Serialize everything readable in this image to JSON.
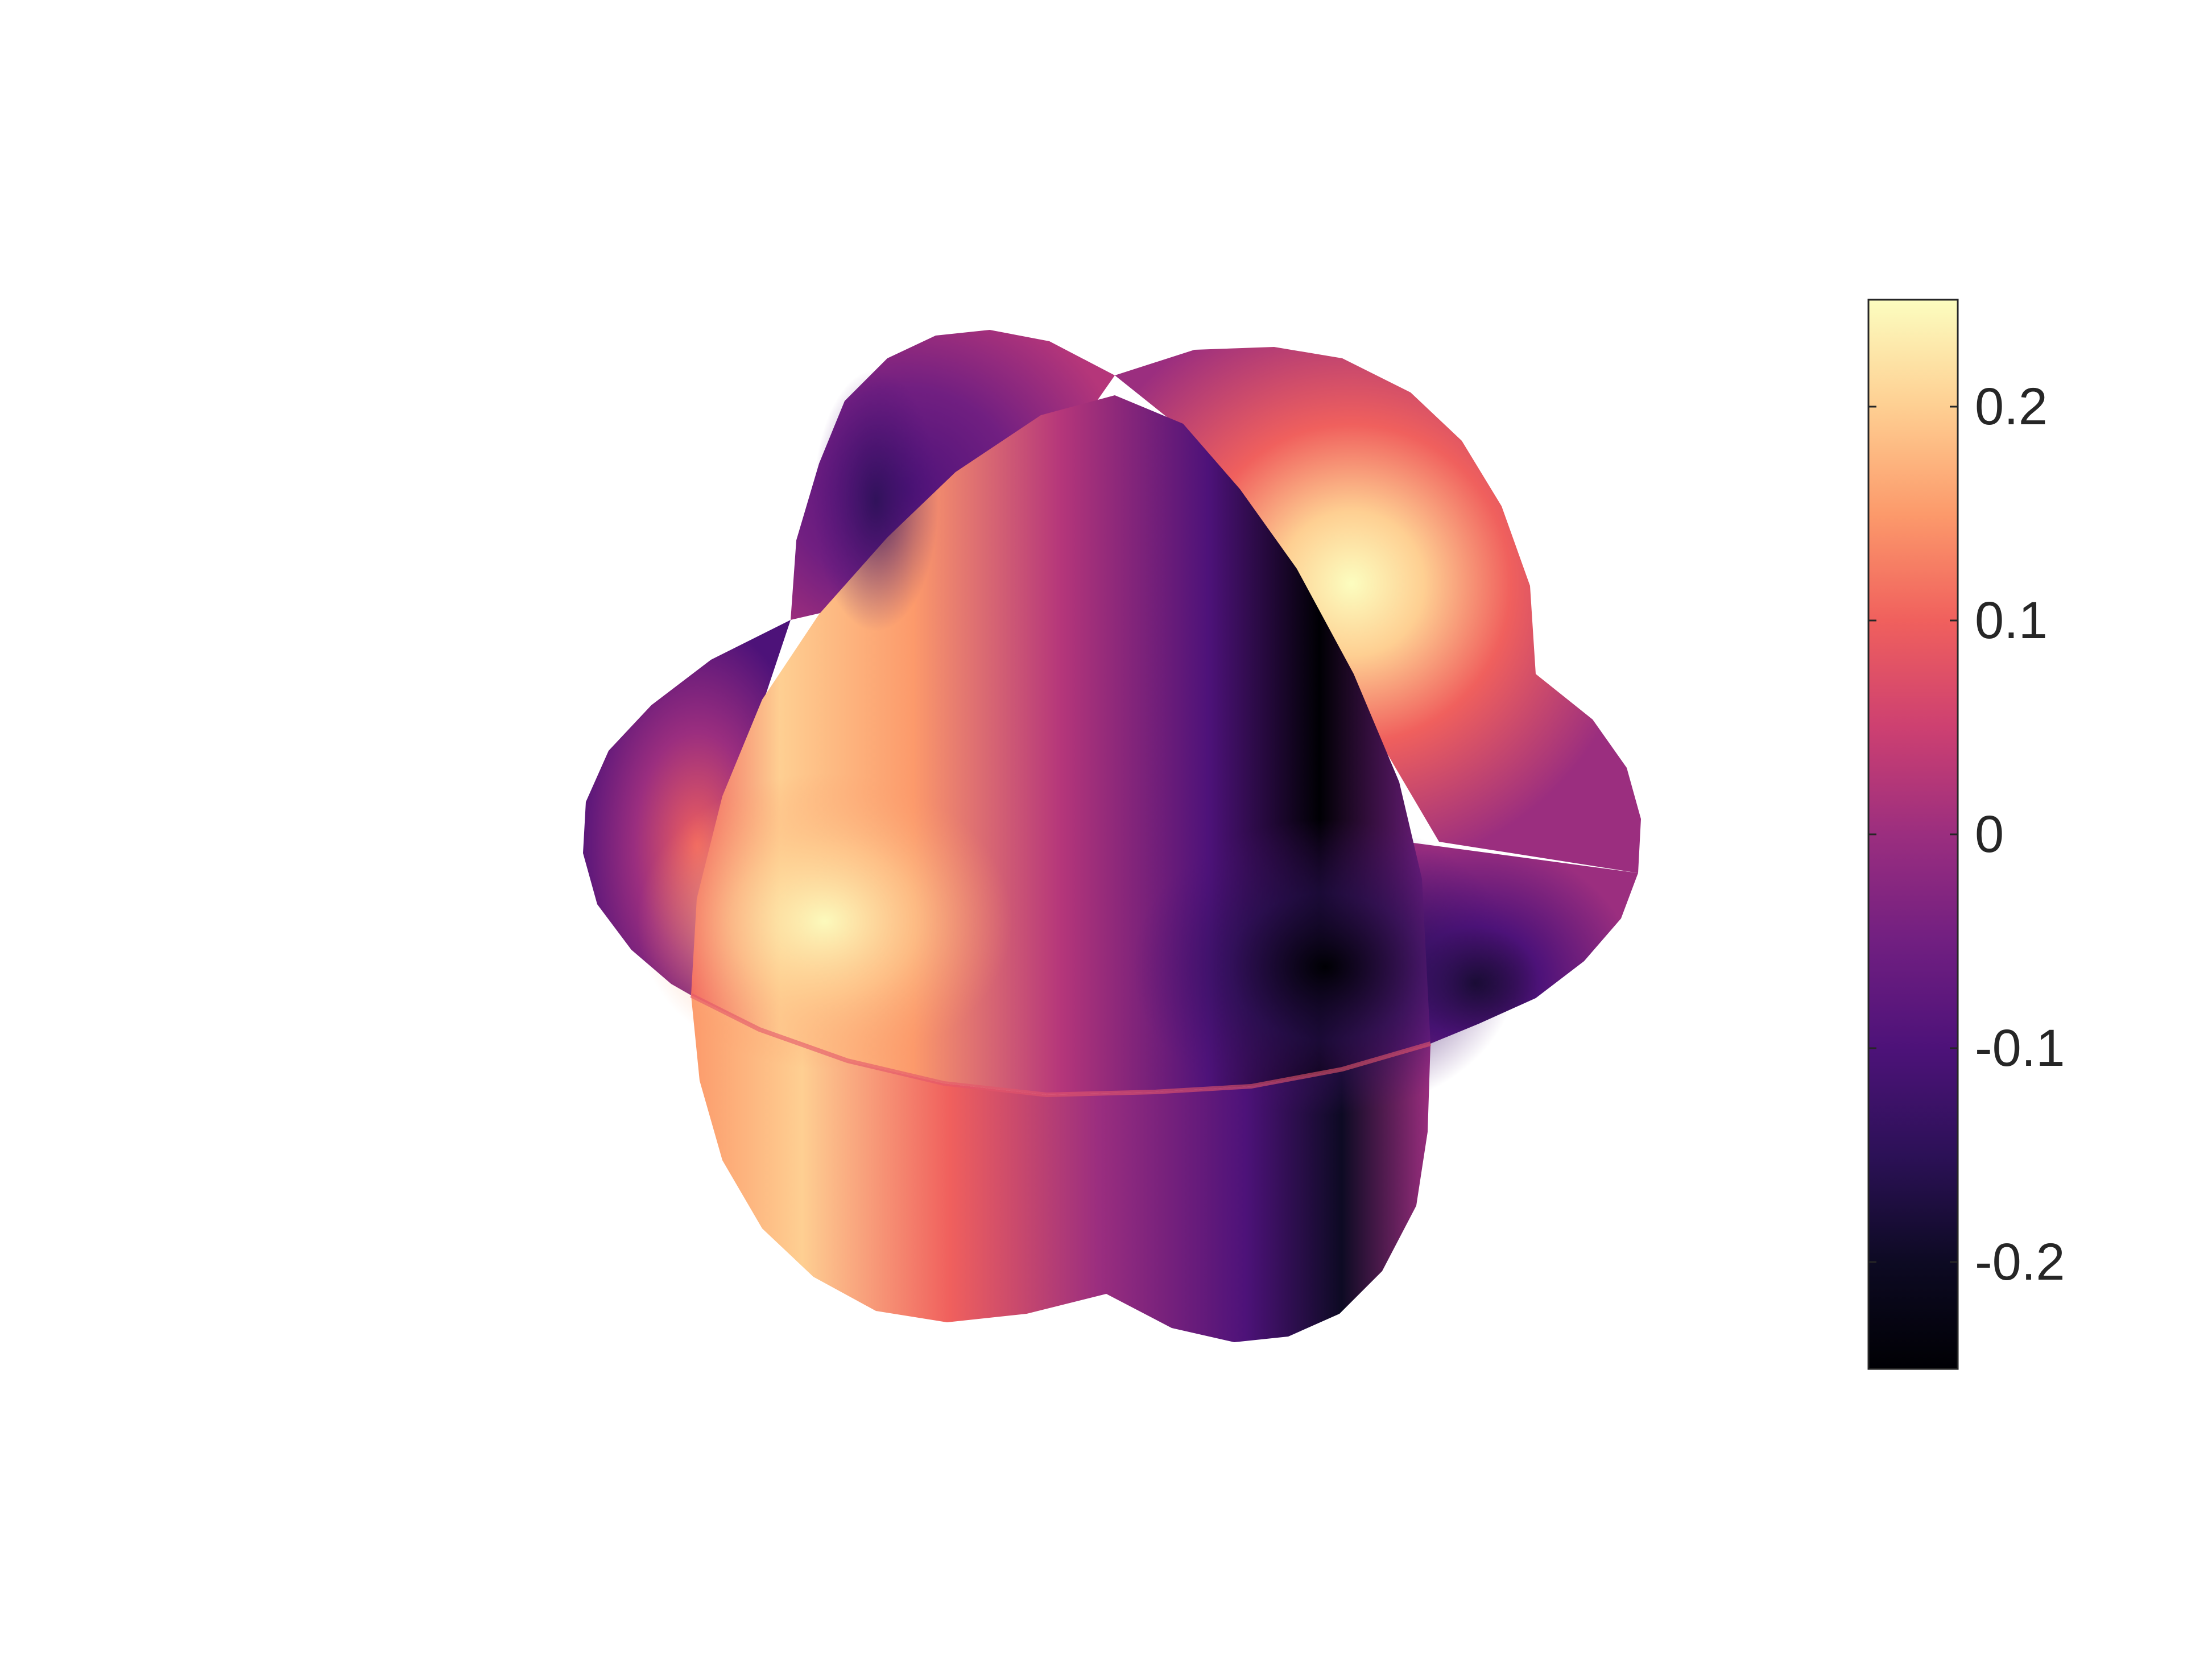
{
  "chart_data": {
    "type": "surface",
    "colormap": "magma",
    "colorbar": {
      "orientation": "vertical",
      "placement": "right",
      "range": [
        -0.25,
        0.25
      ],
      "ticks": [
        0.2,
        0.1,
        0,
        -0.1,
        -0.2
      ],
      "tick_labels": [
        "0.2",
        "0.1",
        "0",
        "-0.1",
        "-0.2"
      ],
      "stops": [
        {
          "value": -0.25,
          "color": "#000004"
        },
        {
          "value": -0.2,
          "color": "#0d0a23"
        },
        {
          "value": -0.15,
          "color": "#2c1157"
        },
        {
          "value": -0.1,
          "color": "#4d1279"
        },
        {
          "value": -0.05,
          "color": "#711f81"
        },
        {
          "value": 0,
          "color": "#9b2e7f"
        },
        {
          "value": 0.05,
          "color": "#cd4071"
        },
        {
          "value": 0.1,
          "color": "#f0605d"
        },
        {
          "value": 0.15,
          "color": "#fc9a6b"
        },
        {
          "value": 0.2,
          "color": "#fecf92"
        },
        {
          "value": 0.25,
          "color": "#fcfdbf"
        }
      ]
    },
    "axes_visible": false,
    "grid": false,
    "title": "",
    "legend": false
  }
}
